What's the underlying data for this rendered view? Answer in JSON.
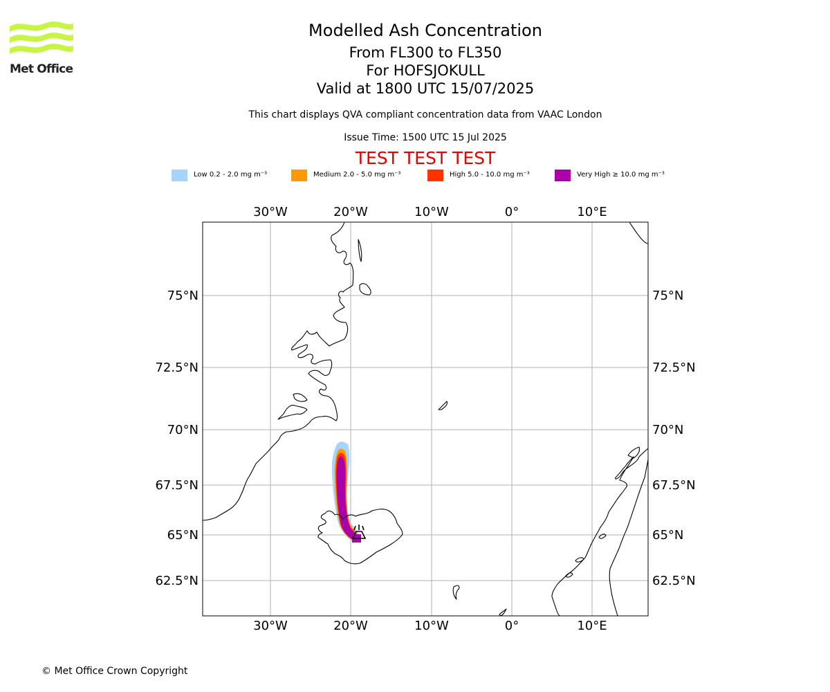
{
  "header": {
    "logo_text": "Met Office",
    "title": "Modelled Ash Concentration",
    "subtitle_levels": "From FL300 to FL350",
    "subtitle_volcano": "For HOFSJOKULL",
    "subtitle_valid": "Valid at 1800 UTC 15/07/2025",
    "description": "This chart displays QVA compliant concentration data from VAAC London",
    "issue_time": "Issue Time: 1500 UTC 15 Jul 2025",
    "test_banner": "TEST TEST TEST"
  },
  "legend": [
    {
      "label": "Low 0.2 - 2.0 mg m⁻³",
      "color": "#a6d4ff"
    },
    {
      "label": "Medium 2.0 - 5.0 mg m⁻³",
      "color": "#ff9900"
    },
    {
      "label": "High 5.0 - 10.0 mg m⁻³",
      "color": "#ff3300"
    },
    {
      "label": "Very High ≥ 10.0 mg m⁻³",
      "color": "#aa00aa"
    }
  ],
  "map": {
    "lon_ticks": [
      "30°W",
      "20°W",
      "10°W",
      "0°",
      "10°E"
    ],
    "lat_ticks": [
      "75°N",
      "72.5°N",
      "70°N",
      "67.5°N",
      "65°N",
      "62.5°N"
    ],
    "volcano_symbol": "volcano-icon",
    "gridlines": true,
    "colors": {
      "grid": "#b0b0b0",
      "coast": "#000000",
      "frame": "#000000"
    }
  },
  "footer": {
    "copyright": "© Met Office Crown Copyright"
  }
}
